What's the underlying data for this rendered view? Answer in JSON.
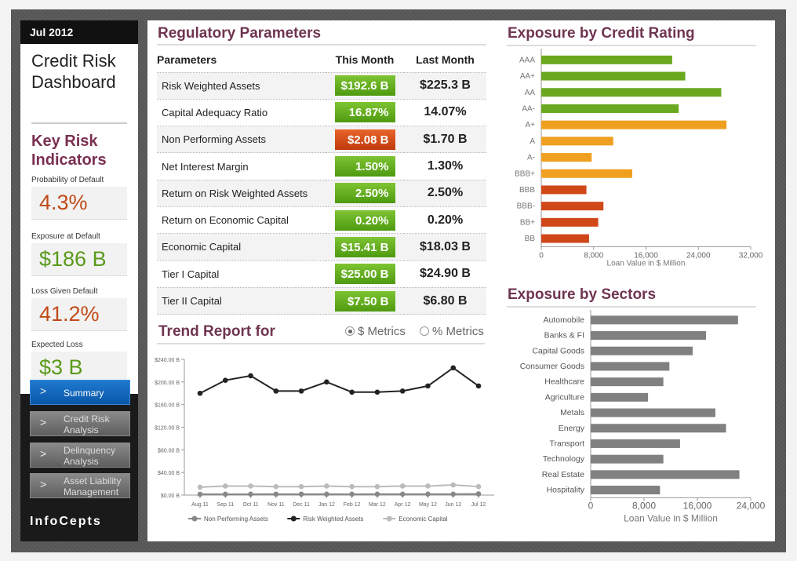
{
  "sidebar": {
    "month": "Jul 2012",
    "title_line1": "Credit Risk",
    "title_line2": "Dashboard",
    "kri_line1": "Key Risk",
    "kri_line2": "Indicators",
    "kris": [
      {
        "label": "Probability of Default",
        "value": "4.3%",
        "status": "red"
      },
      {
        "label": "Exposure at Default",
        "value": "$186 B",
        "status": "green"
      },
      {
        "label": "Loss Given Default",
        "value": "41.2%",
        "status": "red"
      },
      {
        "label": "Expected Loss",
        "value": "$3 B",
        "status": "green"
      }
    ],
    "nav": [
      {
        "label": "Summary",
        "active": true
      },
      {
        "label": "Credit Risk Analysis",
        "active": false
      },
      {
        "label": "Delinquency Analysis",
        "active": false
      },
      {
        "label": "Asset Liability Management",
        "active": false
      }
    ],
    "chevron": ">",
    "logo": "InfoCepts"
  },
  "regulatory": {
    "title": "Regulatory Parameters",
    "headers": [
      "Parameters",
      "This Month",
      "Last Month"
    ],
    "rows": [
      {
        "param": "Risk Weighted Assets",
        "this": "$192.6 B",
        "last": "$225.3 B",
        "status": "good"
      },
      {
        "param": "Capital Adequacy Ratio",
        "this": "16.87%",
        "last": "14.07%",
        "status": "good"
      },
      {
        "param": "Non Performing Assets",
        "this": "$2.08 B",
        "last": "$1.70 B",
        "status": "bad"
      },
      {
        "param": "Net Interest Margin",
        "this": "1.50%",
        "last": "1.30%",
        "status": "good"
      },
      {
        "param": "Return on Risk Weighted Assets",
        "this": "2.50%",
        "last": "2.50%",
        "status": "good"
      },
      {
        "param": "Return on Economic Capital",
        "this": "0.20%",
        "last": "0.20%",
        "status": "good"
      },
      {
        "param": "Economic Capital",
        "this": "$15.41 B",
        "last": "$18.03 B",
        "status": "good"
      },
      {
        "param": "Tier I Capital",
        "this": "$25.00 B",
        "last": "$24.90 B",
        "status": "good"
      },
      {
        "param": "Tier II Capital",
        "this": "$7.50 B",
        "last": "$6.80 B",
        "status": "good"
      }
    ]
  },
  "trend": {
    "title": "Trend Report for",
    "option_dollar": "$ Metrics",
    "option_percent": "% Metrics",
    "selected": "$ Metrics"
  },
  "colors": {
    "good": "#5a9a1a",
    "bad": "#c04a1a",
    "accent": "#6f3550",
    "nav_active": "#0a56a8"
  },
  "chart_data": [
    {
      "type": "line",
      "title": "",
      "x": [
        "Aug 11",
        "Sep 11",
        "Oct 11",
        "Nov 11",
        "Dec 11",
        "Jan 12",
        "Feb 12",
        "Mar 12",
        "Apr 12",
        "May 12",
        "Jun 12",
        "Jul 12"
      ],
      "ylim": [
        0,
        240
      ],
      "yticks": [
        "$0.00 B",
        "$40.00 B",
        "$80.00 B",
        "$120.00 B",
        "$160.00 B",
        "$200.00 B",
        "$240.00 B"
      ],
      "series": [
        {
          "name": "Non Performing Assets",
          "values": [
            1.5,
            1.6,
            1.6,
            1.7,
            1.6,
            1.7,
            1.6,
            1.7,
            1.7,
            1.8,
            1.7,
            2.1
          ],
          "color": "#888888"
        },
        {
          "name": "Risk Weighted Assets",
          "values": [
            180,
            203,
            211,
            184,
            184,
            200,
            182,
            182,
            184,
            193,
            225,
            193
          ],
          "color": "#222222"
        },
        {
          "name": "Economic Capital",
          "values": [
            14,
            16,
            16,
            15,
            15,
            16,
            15,
            15,
            16,
            16,
            18,
            15
          ],
          "color": "#bbbbbb"
        }
      ]
    },
    {
      "type": "bar",
      "title": "Exposure by Credit Rating",
      "xlabel": "Loan Value in $ Million",
      "xlim": [
        0,
        32000
      ],
      "ticks": [
        "0",
        "8,000",
        "16,000",
        "24,000",
        "32,000"
      ],
      "categories": [
        "AAA",
        "AA+",
        "AA",
        "AA-",
        "A+",
        "A",
        "A-",
        "BBB+",
        "BBB",
        "BBB-",
        "BB+",
        "BB"
      ],
      "values": [
        20000,
        22000,
        27500,
        21000,
        28300,
        11000,
        7700,
        13900,
        6900,
        9500,
        8700,
        7300
      ],
      "colors": [
        "#6aa820",
        "#6aa820",
        "#6aa820",
        "#6aa820",
        "#f0a020",
        "#f0a020",
        "#f0a020",
        "#f0a020",
        "#d04818",
        "#d04818",
        "#d04818",
        "#d04818"
      ]
    },
    {
      "type": "bar",
      "title": "Exposure by Sectors",
      "xlabel": "Loan Value in $ Million",
      "xlim": [
        0,
        24000
      ],
      "ticks": [
        "0",
        "8,000",
        "16,000",
        "24,000"
      ],
      "categories": [
        "Automobile",
        "Banks & FI",
        "Capital Goods",
        "Consumer Goods",
        "Healthcare",
        "Agriculture",
        "Metals",
        "Energy",
        "Transport",
        "Technology",
        "Real Estate",
        "Hospitality"
      ],
      "values": [
        22100,
        17300,
        15300,
        11800,
        10900,
        8600,
        18700,
        20300,
        13400,
        10900,
        22300,
        10400
      ],
      "color": "#808080"
    }
  ]
}
